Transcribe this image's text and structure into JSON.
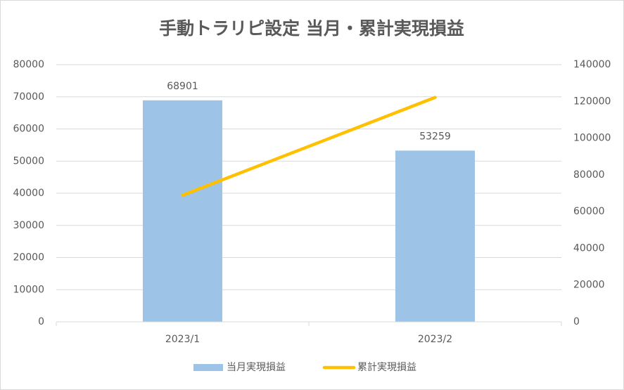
{
  "chart_data": {
    "type": "bar",
    "title": "手動トラリピ設定 当月・累計実現損益",
    "categories": [
      "2023/1",
      "2023/2"
    ],
    "series": [
      {
        "name": "当月実現損益",
        "color": "#9dc3e6",
        "values": [
          68901,
          53259
        ],
        "type": "bar"
      },
      {
        "name": "累計実現損益",
        "color": "#ffc000",
        "values": [
          68901,
          122160
        ],
        "type": "line",
        "axis": "y2"
      }
    ],
    "ylim": [
      0,
      80000
    ],
    "yticks": [
      0,
      10000,
      20000,
      30000,
      40000,
      50000,
      60000,
      70000,
      80000
    ],
    "y2lim": [
      0,
      140000
    ],
    "y2ticks": [
      0,
      20000,
      40000,
      60000,
      80000,
      100000,
      120000,
      140000
    ],
    "grid": true,
    "legend": "bottom"
  }
}
